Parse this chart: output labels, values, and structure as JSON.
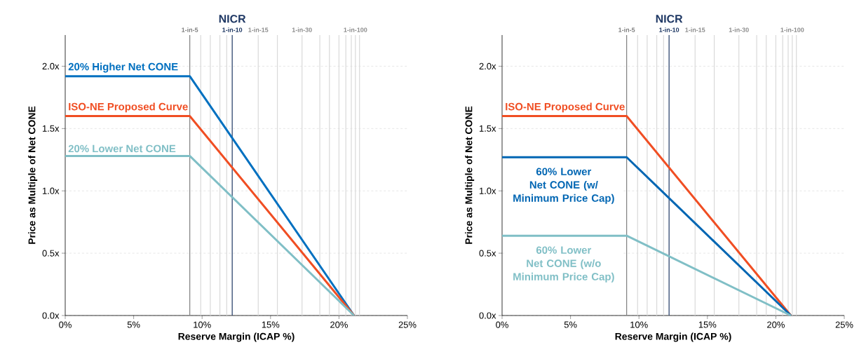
{
  "chart_data": [
    {
      "type": "line",
      "xlabel": "Reserve Margin (ICAP %)",
      "ylabel": "Price as Multiple of Net CONE",
      "annotations": [
        {
          "text": "NICR",
          "x": 12.2,
          "y": 2.25
        }
      ],
      "x": [
        0,
        9.1,
        21.1
      ],
      "series": [
        {
          "name": "20% Higher Net CONE",
          "color": "#0070c0",
          "values": [
            1.92,
            1.92,
            0
          ]
        },
        {
          "name": "ISO-NE Proposed Curve",
          "color": "#f04e23",
          "values": [
            1.6,
            1.6,
            0
          ]
        },
        {
          "name": "20% Lower Net CONE",
          "color": "#80bfc6",
          "values": [
            1.28,
            1.28,
            0
          ]
        }
      ],
      "xlim": [
        0,
        25
      ],
      "ylim": [
        0,
        2.25
      ],
      "xticks": [
        {
          "value": 0,
          "label": "0%"
        },
        {
          "value": 5,
          "label": "5%"
        },
        {
          "value": 10,
          "label": "10%"
        },
        {
          "value": 15,
          "label": "15%"
        },
        {
          "value": 20,
          "label": "20%"
        },
        {
          "value": 25,
          "label": "25%"
        }
      ],
      "yticks": [
        {
          "value": 0,
          "label": "0.0x"
        },
        {
          "value": 0.5,
          "label": "0.5x"
        },
        {
          "value": 1,
          "label": "1.0x"
        },
        {
          "value": 1.5,
          "label": "1.5x"
        },
        {
          "value": 2,
          "label": "2.0x"
        }
      ],
      "grid": "y",
      "legend": false,
      "line_style": "solid",
      "ref_lines": [
        {
          "axis": "x",
          "value": 9.1,
          "label": "1-in-5",
          "color": "#808080"
        },
        {
          "axis": "x",
          "value": 9.9,
          "label": null,
          "color": "#d9d9d9"
        },
        {
          "axis": "x",
          "value": 10.6,
          "label": null,
          "color": "#d9d9d9"
        },
        {
          "axis": "x",
          "value": 11.3,
          "label": null,
          "color": "#d9d9d9"
        },
        {
          "axis": "x",
          "value": 11.8,
          "label": null,
          "color": "#d9d9d9"
        },
        {
          "axis": "x",
          "value": 12.2,
          "label": "1-in-10",
          "color": "#1f3864"
        },
        {
          "axis": "x",
          "value": 14.1,
          "label": "1-in-15",
          "color": "#d9d9d9"
        },
        {
          "axis": "x",
          "value": 15.5,
          "label": null,
          "color": "#d9d9d9"
        },
        {
          "axis": "x",
          "value": 17.3,
          "label": "1-in-30",
          "color": "#d9d9d9"
        },
        {
          "axis": "x",
          "value": 18.6,
          "label": null,
          "color": "#d9d9d9"
        },
        {
          "axis": "x",
          "value": 19.3,
          "label": null,
          "color": "#d9d9d9"
        },
        {
          "axis": "x",
          "value": 20.0,
          "label": null,
          "color": "#d9d9d9"
        },
        {
          "axis": "x",
          "value": 20.5,
          "label": null,
          "color": "#d9d9d9"
        },
        {
          "axis": "x",
          "value": 20.9,
          "label": null,
          "color": "#d9d9d9"
        },
        {
          "axis": "x",
          "value": 21.2,
          "label": "1-in-100",
          "color": "#d9d9d9"
        },
        {
          "axis": "x",
          "value": 21.5,
          "label": null,
          "color": "#d9d9d9"
        }
      ]
    },
    {
      "type": "line",
      "xlabel": "Reserve Margin (ICAP %)",
      "ylabel": "Price as Multiple of Net CONE",
      "annotations": [
        {
          "text": "NICR",
          "x": 12.2,
          "y": 2.25
        }
      ],
      "x": [
        0,
        9.1,
        21.1
      ],
      "series": [
        {
          "name": "ISO-NE Proposed Curve",
          "color": "#f04e23",
          "values": [
            1.6,
            1.6,
            0
          ]
        },
        {
          "name": "60% Lower Net CONE (w/ Minimum Price Cap)",
          "color": "#0066b3",
          "values": [
            1.27,
            1.27,
            0
          ]
        },
        {
          "name": "60% Lower Net CONE (w/o Minimum Price Cap)",
          "color": "#80bfc6",
          "values": [
            0.64,
            0.64,
            0
          ]
        }
      ],
      "xlim": [
        0,
        25
      ],
      "ylim": [
        0,
        2.25
      ],
      "xticks": [
        {
          "value": 0,
          "label": "0%"
        },
        {
          "value": 5,
          "label": "5%"
        },
        {
          "value": 10,
          "label": "10%"
        },
        {
          "value": 15,
          "label": "15%"
        },
        {
          "value": 20,
          "label": "20%"
        },
        {
          "value": 25,
          "label": "25%"
        }
      ],
      "yticks": [
        {
          "value": 0,
          "label": "0.0x"
        },
        {
          "value": 0.5,
          "label": "0.5x"
        },
        {
          "value": 1,
          "label": "1.0x"
        },
        {
          "value": 1.5,
          "label": "1.5x"
        },
        {
          "value": 2,
          "label": "2.0x"
        }
      ],
      "grid": "y",
      "legend": false,
      "line_style": "solid",
      "ref_lines": [
        {
          "axis": "x",
          "value": 9.1,
          "label": "1-in-5",
          "color": "#808080"
        },
        {
          "axis": "x",
          "value": 9.9,
          "label": null,
          "color": "#d9d9d9"
        },
        {
          "axis": "x",
          "value": 10.6,
          "label": null,
          "color": "#d9d9d9"
        },
        {
          "axis": "x",
          "value": 11.3,
          "label": null,
          "color": "#d9d9d9"
        },
        {
          "axis": "x",
          "value": 11.8,
          "label": null,
          "color": "#d9d9d9"
        },
        {
          "axis": "x",
          "value": 12.2,
          "label": "1-in-10",
          "color": "#1f3864"
        },
        {
          "axis": "x",
          "value": 14.1,
          "label": "1-in-15",
          "color": "#d9d9d9"
        },
        {
          "axis": "x",
          "value": 15.5,
          "label": null,
          "color": "#d9d9d9"
        },
        {
          "axis": "x",
          "value": 17.3,
          "label": "1-in-30",
          "color": "#d9d9d9"
        },
        {
          "axis": "x",
          "value": 18.6,
          "label": null,
          "color": "#d9d9d9"
        },
        {
          "axis": "x",
          "value": 19.3,
          "label": null,
          "color": "#d9d9d9"
        },
        {
          "axis": "x",
          "value": 20.0,
          "label": null,
          "color": "#d9d9d9"
        },
        {
          "axis": "x",
          "value": 20.5,
          "label": null,
          "color": "#d9d9d9"
        },
        {
          "axis": "x",
          "value": 20.9,
          "label": null,
          "color": "#d9d9d9"
        },
        {
          "axis": "x",
          "value": 21.2,
          "label": "1-in-100",
          "color": "#d9d9d9"
        },
        {
          "axis": "x",
          "value": 21.5,
          "label": null,
          "color": "#d9d9d9"
        }
      ]
    }
  ]
}
